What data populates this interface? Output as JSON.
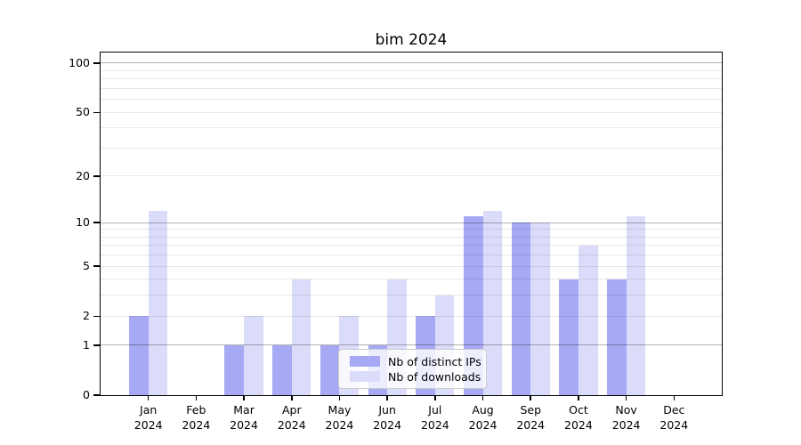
{
  "title": "bim 2024",
  "chart_data": {
    "type": "bar",
    "title": "bim 2024",
    "categories": [
      "Jan",
      "Feb",
      "Mar",
      "Apr",
      "May",
      "Jun",
      "Jul",
      "Aug",
      "Sep",
      "Oct",
      "Nov",
      "Dec"
    ],
    "category_year": "2024",
    "series": [
      {
        "key": "distinct-ips",
        "name": "Nb of distinct IPs",
        "color": "#a7a9f4",
        "values": [
          2,
          0,
          1,
          1,
          1,
          1,
          2,
          11,
          10,
          4,
          4,
          0
        ]
      },
      {
        "key": "downloads",
        "name": "Nb of downloads",
        "color": "#dbdcf9",
        "values": [
          12,
          0,
          2,
          4,
          2,
          4,
          3,
          12,
          10,
          7,
          11,
          0
        ]
      }
    ],
    "xlabel": "",
    "ylabel": "",
    "y_axis": {
      "scale": "log1p",
      "tick_values": [
        0,
        1,
        2,
        5,
        10,
        20,
        50,
        100
      ],
      "major_grid_values": [
        1,
        10,
        100
      ],
      "minor_grid_values": [
        2,
        3,
        4,
        5,
        6,
        7,
        8,
        9,
        20,
        30,
        40,
        50,
        60,
        70,
        80,
        90
      ],
      "ylim": [
        0,
        115
      ]
    },
    "grid": "horizontal",
    "legend_position": "inside-lower-center"
  },
  "colors": {
    "background": "#ffffff",
    "axis": "#000000",
    "major_grid": "rgba(0,0,0,0.30)",
    "minor_grid": "rgba(0,0,0,0.09)",
    "legend_border": "#cccccc"
  }
}
